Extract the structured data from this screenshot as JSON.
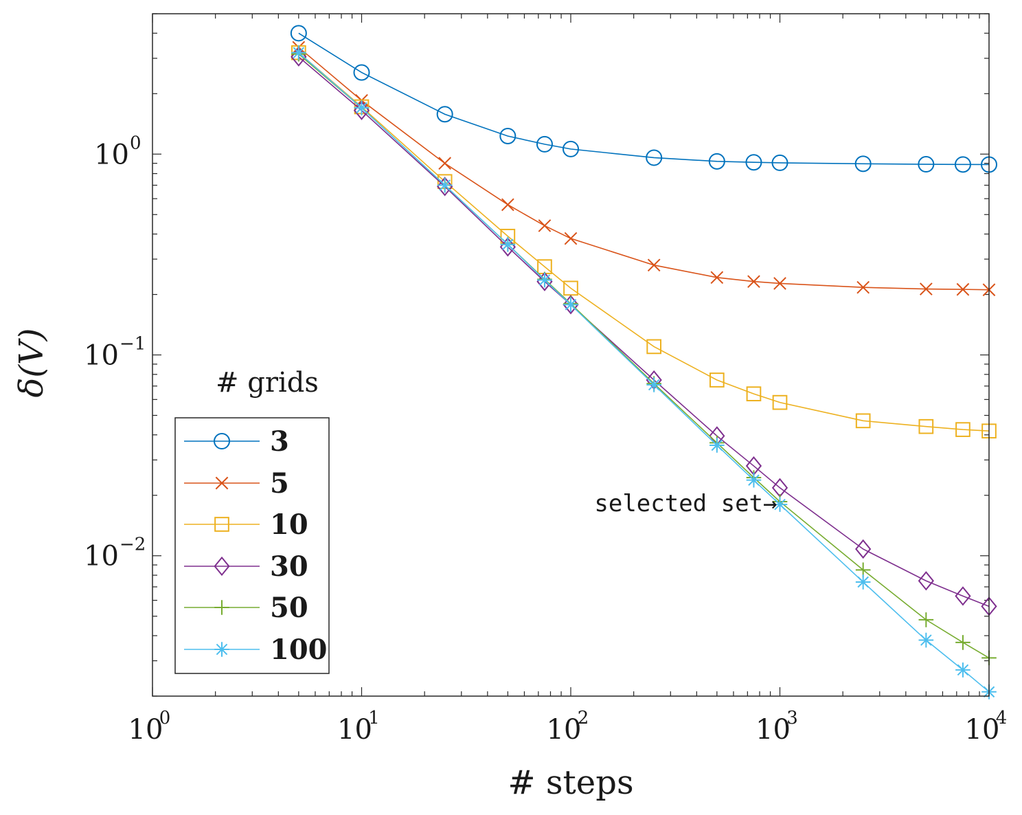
{
  "chart_data": {
    "type": "line",
    "xscale": "log",
    "yscale": "log",
    "xlim": [
      1,
      10000
    ],
    "ylim": [
      0.002,
      5
    ],
    "xlabel": "# steps",
    "ylabel": "δ(V)",
    "x_ticks": [
      {
        "base": "10",
        "exp": "0",
        "value": 1
      },
      {
        "base": "10",
        "exp": "1",
        "value": 10
      },
      {
        "base": "10",
        "exp": "2",
        "value": 100
      },
      {
        "base": "10",
        "exp": "3",
        "value": 1000
      },
      {
        "base": "10",
        "exp": "4",
        "value": 10000
      }
    ],
    "y_ticks": [
      {
        "base": "10",
        "exp": "0",
        "value": 1
      },
      {
        "base": "10",
        "exp": "−1",
        "value": 0.1
      },
      {
        "base": "10",
        "exp": "−2",
        "value": 0.01
      }
    ],
    "legend_title": "# grids",
    "legend_position": "lower-left",
    "x": [
      5,
      10,
      25,
      50,
      75,
      100,
      250,
      500,
      750,
      1000,
      2500,
      5000,
      7500,
      10000
    ],
    "series": [
      {
        "name": "3",
        "marker": "circle",
        "color": "#0072BD",
        "values": [
          4.0,
          2.55,
          1.58,
          1.23,
          1.12,
          1.06,
          0.96,
          0.92,
          0.91,
          0.905,
          0.895,
          0.89,
          0.888,
          0.887
        ]
      },
      {
        "name": "5",
        "marker": "x",
        "color": "#D95319",
        "values": [
          3.4,
          1.85,
          0.9,
          0.56,
          0.44,
          0.38,
          0.28,
          0.243,
          0.232,
          0.227,
          0.217,
          0.213,
          0.212,
          0.211
        ]
      },
      {
        "name": "10",
        "marker": "square",
        "color": "#EDB120",
        "values": [
          3.2,
          1.72,
          0.73,
          0.39,
          0.275,
          0.215,
          0.11,
          0.075,
          0.064,
          0.058,
          0.047,
          0.044,
          0.0425,
          0.0418
        ]
      },
      {
        "name": "30",
        "marker": "diamond",
        "color": "#7E2F8E",
        "values": [
          3.05,
          1.65,
          0.69,
          0.345,
          0.232,
          0.178,
          0.075,
          0.0395,
          0.028,
          0.0218,
          0.0108,
          0.0075,
          0.0063,
          0.0056
        ]
      },
      {
        "name": "50",
        "marker": "plus",
        "color": "#77AC30",
        "values": [
          3.15,
          1.7,
          0.7,
          0.355,
          0.238,
          0.18,
          0.072,
          0.0365,
          0.0245,
          0.0186,
          0.0085,
          0.0048,
          0.0037,
          0.0031
        ]
      },
      {
        "name": "100",
        "marker": "asterisk",
        "color": "#4DBEEE",
        "values": [
          3.2,
          1.7,
          0.7,
          0.355,
          0.236,
          0.178,
          0.071,
          0.0355,
          0.0238,
          0.018,
          0.0074,
          0.0038,
          0.0027,
          0.0021
        ]
      }
    ],
    "annotations": [
      {
        "text": "selected set→",
        "x": 1000,
        "y": 0.018
      }
    ]
  }
}
